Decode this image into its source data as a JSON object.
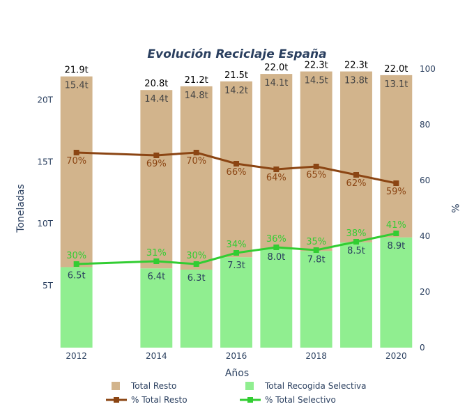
{
  "chart_data": {
    "type": "bar",
    "barmode": "stack",
    "title": "Evolución Reciclaje España",
    "xlabel": "Años",
    "ylabel": "Toneladas",
    "y2label": "%",
    "x": [
      2012,
      2014,
      2015,
      2016,
      2017,
      2018,
      2019,
      2020
    ],
    "xticks": [
      "2012",
      "2014",
      "2016",
      "2018",
      "2020"
    ],
    "ylim": [
      0,
      22.5
    ],
    "yticks": [
      "5T",
      "10T",
      "15T",
      "20T"
    ],
    "y2lim": [
      0,
      100
    ],
    "y2ticks": [
      "0",
      "20",
      "40",
      "60",
      "80",
      "100"
    ],
    "grid": false,
    "legend_position": "bottom",
    "bars": [
      {
        "name": "Total Recogida Selectiva",
        "color": "#90ee90",
        "values": [
          6.5,
          6.4,
          6.3,
          7.3,
          8.0,
          7.8,
          8.5,
          8.9
        ],
        "labels": [
          "6.5t",
          "6.4t",
          "6.3t",
          "7.3t",
          "8.0t",
          "7.8t",
          "8.5t",
          "8.9t"
        ]
      },
      {
        "name": "Total Resto",
        "color": "#d2b48c",
        "values": [
          15.4,
          14.4,
          14.8,
          14.2,
          14.1,
          14.5,
          13.8,
          13.1
        ],
        "labels": [
          "15.4t",
          "14.4t",
          "14.8t",
          "14.2t",
          "14.1t",
          "14.5t",
          "13.8t",
          "13.1t"
        ]
      }
    ],
    "totals": [
      "21.9t",
      "20.8t",
      "21.2t",
      "21.5t",
      "22.0t",
      "22.3t",
      "22.3t",
      "22.0t"
    ],
    "lines": [
      {
        "name": "% Total Resto",
        "color": "#8b4513",
        "values": [
          70,
          69,
          70,
          66,
          64,
          65,
          62,
          59
        ],
        "labels": [
          "70%",
          "69%",
          "70%",
          "66%",
          "64%",
          "65%",
          "62%",
          "59%"
        ]
      },
      {
        "name": "% Total Selectivo",
        "color": "#32cd32",
        "values": [
          30,
          31,
          30,
          34,
          36,
          35,
          38,
          41
        ],
        "labels": [
          "30%",
          "31%",
          "30%",
          "34%",
          "36%",
          "35%",
          "38%",
          "41%"
        ]
      }
    ],
    "legend": [
      {
        "name": "Total Resto",
        "kind": "bar",
        "color": "#d2b48c"
      },
      {
        "name": "Total Recogida Selectiva",
        "kind": "bar",
        "color": "#90ee90"
      },
      {
        "name": "% Total Resto",
        "kind": "line",
        "color": "#8b4513"
      },
      {
        "name": "% Total Selectivo",
        "kind": "line",
        "color": "#32cd32"
      }
    ],
    "label_colors": {
      "totals": "#000000",
      "resto_labels": "#444444",
      "selectiva_labels": "#2a3f5f"
    }
  }
}
